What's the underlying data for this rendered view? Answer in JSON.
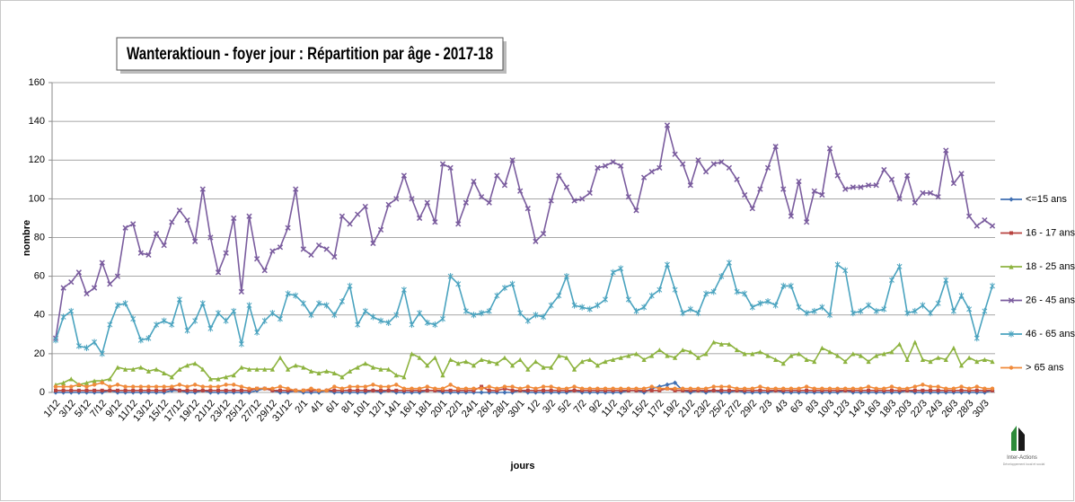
{
  "chart_data": {
    "type": "line",
    "title": "Wanteraktioun - foyer jour : Répartition par âge - 2017-18",
    "x_label": "jours",
    "y_label": "nombre",
    "categories": [
      "1/12",
      null,
      "3/12",
      null,
      "5/12",
      null,
      "7/12",
      null,
      "9/12",
      null,
      "11/12",
      null,
      "13/12",
      null,
      "15/12",
      null,
      "17/12",
      null,
      "19/12",
      null,
      "21/12",
      null,
      "23/12",
      null,
      "25/12",
      null,
      "27/12",
      null,
      "29/12",
      null,
      "31/12",
      null,
      "2/1",
      null,
      "4/1",
      null,
      "6/1",
      null,
      "8/1",
      null,
      "10/1",
      null,
      "12/1",
      null,
      "14/1",
      null,
      "16/1",
      null,
      "18/1",
      null,
      "20/1",
      null,
      "22/1",
      null,
      "24/1",
      null,
      "26/1",
      null,
      "28/1",
      null,
      "30/1",
      null,
      "1/2",
      null,
      "3/2",
      null,
      "5/2",
      null,
      "7/2",
      null,
      "9/2",
      null,
      "11/2",
      null,
      "13/2",
      null,
      "15/2",
      null,
      "17/2",
      null,
      "19/2",
      null,
      "21/2",
      null,
      "23/2",
      null,
      "25/2",
      null,
      "27/2",
      null,
      "29/2",
      null,
      "2/3",
      null,
      "4/3",
      null,
      "6/3",
      null,
      "8/3",
      null,
      "10/3",
      null,
      "12/3",
      null,
      "14/3",
      null,
      "16/3",
      null,
      "18/3",
      null,
      "20/3",
      null,
      "22/3",
      null,
      "24/3",
      null,
      "26/3",
      null,
      "28/3",
      null,
      "30/3",
      null
    ],
    "ylim": [
      0,
      160
    ],
    "yticks": [
      0,
      20,
      40,
      60,
      80,
      100,
      120,
      140,
      160
    ],
    "grid": true,
    "legend": "right",
    "series": [
      {
        "name": "<=15 ans",
        "color": "#3f6fb3",
        "marker": "diamond",
        "values": [
          0,
          0,
          0,
          0,
          0,
          0,
          0,
          1,
          0,
          0,
          0,
          0,
          0,
          0,
          0,
          1,
          1,
          0,
          0,
          1,
          0,
          0,
          0,
          0,
          0,
          0,
          1,
          2,
          1,
          0,
          0,
          1,
          0,
          0,
          0,
          1,
          0,
          0,
          0,
          0,
          0,
          1,
          0,
          1,
          0,
          0,
          0,
          0,
          1,
          1,
          0,
          0,
          0,
          0,
          0,
          0,
          0,
          0,
          0,
          0,
          1,
          0,
          0,
          0,
          0,
          0,
          0,
          1,
          0,
          0,
          0,
          0,
          0,
          0,
          1,
          1,
          0,
          2,
          3,
          4,
          5,
          1,
          0,
          1,
          0,
          1,
          0,
          0,
          1,
          0,
          0,
          0,
          0,
          1,
          0,
          0,
          0,
          0,
          0,
          0,
          0,
          0,
          1,
          0,
          0,
          0,
          0,
          0,
          0,
          0,
          1,
          0,
          0,
          0,
          0,
          0,
          0,
          0,
          0,
          0,
          0,
          1
        ]
      },
      {
        "name": "16 - 17 ans",
        "color": "#b8433f",
        "marker": "square",
        "values": [
          1,
          1,
          1,
          1,
          1,
          1,
          1,
          1,
          1,
          1,
          1,
          1,
          1,
          1,
          1,
          2,
          1,
          1,
          1,
          1,
          1,
          1,
          1,
          1,
          1,
          1,
          2,
          2,
          1,
          1,
          1,
          1,
          1,
          1,
          1,
          1,
          1,
          1,
          1,
          1,
          1,
          1,
          1,
          1,
          1,
          1,
          1,
          1,
          1,
          1,
          1,
          1,
          1,
          1,
          1,
          3,
          1,
          1,
          2,
          1,
          1,
          1,
          1,
          1,
          1,
          1,
          1,
          1,
          1,
          1,
          1,
          1,
          1,
          1,
          1,
          1,
          1,
          1,
          1,
          2,
          1,
          1,
          1,
          1,
          1,
          1,
          1,
          1,
          1,
          1,
          1,
          1,
          1,
          1,
          1,
          1,
          1,
          1,
          1,
          1,
          1,
          1,
          1,
          1,
          1,
          1,
          1,
          1,
          1,
          1,
          1,
          1,
          1,
          1,
          1,
          1,
          1,
          1,
          1,
          1,
          1,
          1
        ]
      },
      {
        "name": "18 - 25 ans",
        "color": "#8db33f",
        "marker": "triangle",
        "values": [
          4,
          5,
          7,
          4,
          5,
          6,
          6,
          7,
          13,
          12,
          12,
          13,
          11,
          12,
          10,
          8,
          12,
          14,
          15,
          12,
          7,
          7,
          8,
          9,
          13,
          12,
          12,
          12,
          12,
          18,
          12,
          14,
          13,
          11,
          10,
          11,
          10,
          8,
          11,
          13,
          15,
          13,
          12,
          12,
          9,
          8,
          20,
          18,
          14,
          18,
          9,
          17,
          15,
          16,
          14,
          17,
          16,
          15,
          18,
          14,
          17,
          12,
          16,
          13,
          13,
          19,
          18,
          12,
          16,
          17,
          14,
          16,
          17,
          18,
          19,
          20,
          17,
          19,
          22,
          19,
          18,
          22,
          21,
          18,
          20,
          26,
          25,
          25,
          22,
          20,
          20,
          21,
          19,
          17,
          15,
          19,
          20,
          17,
          16,
          23,
          21,
          19,
          16,
          20,
          19,
          16,
          19,
          20,
          21,
          25,
          17,
          26,
          17,
          16,
          18,
          17,
          23,
          14,
          18,
          16,
          17,
          16
        ]
      },
      {
        "name": "26 - 45 ans",
        "color": "#7a5c9e",
        "marker": "x",
        "values": [
          28,
          54,
          57,
          62,
          51,
          54,
          67,
          56,
          60,
          85,
          87,
          72,
          71,
          82,
          76,
          88,
          94,
          89,
          78,
          105,
          80,
          62,
          72,
          90,
          52,
          91,
          69,
          63,
          73,
          75,
          85,
          105,
          74,
          71,
          76,
          74,
          70,
          91,
          87,
          92,
          96,
          77,
          84,
          97,
          100,
          112,
          100,
          90,
          98,
          88,
          118,
          116,
          87,
          98,
          109,
          101,
          98,
          112,
          107,
          120,
          104,
          95,
          78,
          82,
          99,
          112,
          106,
          99,
          100,
          103,
          116,
          117,
          119,
          117,
          101,
          94,
          111,
          114,
          116,
          138,
          123,
          118,
          107,
          120,
          114,
          118,
          119,
          116,
          110,
          102,
          95,
          105,
          116,
          127,
          105,
          91,
          109,
          88,
          104,
          102,
          126,
          112,
          105,
          106,
          106,
          107,
          107,
          115,
          110,
          100,
          112,
          98,
          103,
          103,
          101,
          125,
          108,
          113,
          91,
          86,
          89,
          86
        ]
      },
      {
        "name": "46 - 65 ans",
        "color": "#4aa3bf",
        "marker": "star",
        "values": [
          27,
          39,
          42,
          24,
          23,
          26,
          20,
          35,
          45,
          46,
          38,
          27,
          28,
          35,
          37,
          35,
          48,
          32,
          37,
          46,
          33,
          41,
          37,
          42,
          25,
          45,
          31,
          37,
          41,
          38,
          51,
          50,
          46,
          40,
          46,
          45,
          40,
          47,
          55,
          35,
          42,
          39,
          37,
          36,
          40,
          53,
          35,
          41,
          36,
          35,
          38,
          60,
          56,
          42,
          40,
          41,
          42,
          50,
          54,
          56,
          41,
          37,
          40,
          39,
          45,
          50,
          60,
          45,
          44,
          43,
          45,
          48,
          62,
          64,
          48,
          42,
          44,
          50,
          53,
          66,
          53,
          41,
          43,
          41,
          51,
          52,
          60,
          67,
          52,
          51,
          44,
          46,
          47,
          45,
          55,
          55,
          44,
          41,
          42,
          44,
          40,
          66,
          63,
          41,
          42,
          45,
          42,
          43,
          58,
          65,
          41,
          42,
          45,
          41,
          46,
          58,
          42,
          50,
          43,
          28,
          42,
          55
        ]
      },
      {
        "name": "> 65 ans",
        "color": "#f08a3a",
        "marker": "circle",
        "values": [
          3,
          3,
          3,
          4,
          3,
          4,
          5,
          3,
          4,
          3,
          3,
          3,
          3,
          3,
          3,
          3,
          4,
          3,
          4,
          3,
          3,
          3,
          4,
          4,
          3,
          2,
          2,
          2,
          2,
          3,
          2,
          1,
          1,
          2,
          1,
          1,
          3,
          2,
          3,
          3,
          3,
          4,
          3,
          3,
          4,
          2,
          2,
          2,
          3,
          2,
          2,
          4,
          2,
          2,
          2,
          2,
          3,
          2,
          3,
          3,
          2,
          3,
          2,
          3,
          3,
          2,
          2,
          3,
          2,
          2,
          2,
          2,
          2,
          2,
          2,
          2,
          2,
          3,
          2,
          2,
          2,
          2,
          2,
          2,
          2,
          3,
          3,
          3,
          2,
          2,
          2,
          3,
          2,
          2,
          2,
          2,
          2,
          3,
          2,
          2,
          2,
          2,
          2,
          2,
          2,
          3,
          2,
          2,
          3,
          2,
          2,
          3,
          4,
          3,
          3,
          2,
          2,
          3,
          2,
          3,
          2,
          2
        ]
      }
    ]
  },
  "logo": {
    "name": "Inter-Actions",
    "tagline": "Développement local et social"
  }
}
